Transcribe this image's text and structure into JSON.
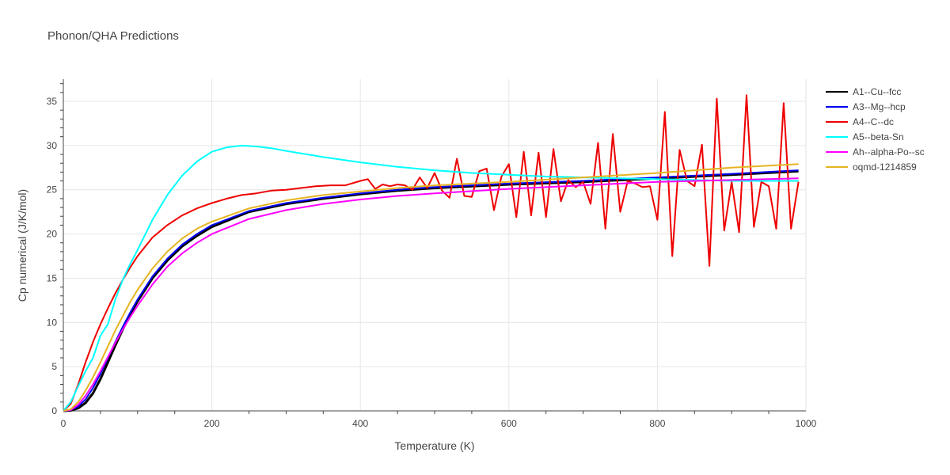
{
  "chart_data": {
    "type": "line",
    "title": "Phonon/QHA Predictions",
    "xlabel": "Temperature (K)",
    "ylabel": "Cp numerical (J/K/mol)",
    "xlim": [
      0,
      1000
    ],
    "ylim": [
      0,
      37.5
    ],
    "xticks": [
      0,
      200,
      400,
      600,
      800,
      1000
    ],
    "xtick_labels": [
      "0",
      "200",
      "400",
      "600",
      "800",
      "1000"
    ],
    "yticks": [
      0,
      5,
      10,
      15,
      20,
      25,
      30,
      35
    ],
    "ytick_labels": [
      "0",
      "5",
      "10",
      "15",
      "20",
      "25",
      "30",
      "35"
    ],
    "grid": true,
    "legend_position": "top-right",
    "series": [
      {
        "name": "A1--Cu--fcc",
        "color": "#000000",
        "width": 3,
        "x": [
          0,
          10,
          20,
          30,
          40,
          50,
          60,
          70,
          80,
          90,
          100,
          120,
          140,
          160,
          180,
          200,
          250,
          300,
          350,
          400,
          450,
          500,
          600,
          700,
          800,
          900,
          990
        ],
        "y": [
          0,
          0.05,
          0.3,
          0.9,
          2.0,
          3.6,
          5.5,
          7.4,
          9.2,
          10.9,
          12.4,
          15.0,
          17.0,
          18.6,
          19.8,
          20.8,
          22.5,
          23.4,
          24.0,
          24.5,
          24.9,
          25.2,
          25.6,
          25.9,
          26.3,
          26.7,
          27.1
        ]
      },
      {
        "name": "A3--Mg--hcp",
        "color": "#0000ee",
        "width": 2,
        "x": [
          0,
          10,
          20,
          30,
          40,
          50,
          60,
          70,
          80,
          90,
          100,
          120,
          140,
          160,
          180,
          200,
          250,
          300,
          350,
          400,
          450,
          500,
          600,
          700,
          800,
          900,
          990
        ],
        "y": [
          0,
          0.1,
          0.5,
          1.3,
          2.6,
          4.2,
          6.0,
          7.8,
          9.5,
          11.1,
          12.6,
          15.2,
          17.2,
          18.8,
          20.0,
          21.0,
          22.6,
          23.5,
          24.1,
          24.6,
          25.0,
          25.3,
          25.7,
          26.0,
          26.4,
          26.8,
          27.2
        ]
      },
      {
        "name": "A4--C--dc",
        "color": "#ee0000",
        "width": 2,
        "x": [
          0,
          10,
          20,
          30,
          40,
          50,
          60,
          70,
          80,
          90,
          100,
          120,
          140,
          160,
          180,
          200,
          220,
          240,
          260,
          280,
          300,
          320,
          340,
          360,
          380,
          400,
          410,
          420,
          430,
          440,
          450,
          460,
          470,
          480,
          490,
          500,
          510,
          520,
          530,
          540,
          550,
          560,
          570,
          580,
          590,
          600,
          610,
          620,
          630,
          640,
          650,
          660,
          670,
          680,
          690,
          700,
          710,
          720,
          730,
          740,
          750,
          760,
          770,
          780,
          790,
          800,
          810,
          820,
          830,
          840,
          850,
          860,
          870,
          880,
          890,
          900,
          910,
          920,
          930,
          940,
          950,
          960,
          970,
          980,
          990
        ],
        "y": [
          0,
          0.8,
          3.0,
          5.5,
          7.8,
          9.8,
          11.6,
          13.3,
          14.8,
          16.2,
          17.5,
          19.6,
          21.0,
          22.1,
          22.9,
          23.5,
          24.0,
          24.4,
          24.6,
          24.9,
          25.0,
          25.2,
          25.4,
          25.5,
          25.5,
          26.0,
          26.2,
          25.1,
          25.6,
          25.4,
          25.6,
          25.5,
          25.0,
          26.4,
          25.2,
          26.9,
          24.9,
          24.1,
          28.5,
          24.3,
          24.2,
          27.1,
          27.4,
          22.7,
          26.5,
          27.9,
          21.9,
          29.3,
          22.1,
          29.2,
          21.9,
          29.6,
          23.7,
          26.1,
          25.3,
          25.9,
          23.4,
          30.3,
          20.6,
          31.3,
          22.5,
          26.0,
          25.7,
          25.3,
          25.4,
          21.6,
          33.8,
          17.5,
          29.5,
          26.0,
          25.4,
          30.1,
          16.4,
          35.3,
          20.4,
          25.9,
          20.2,
          35.7,
          20.8,
          25.9,
          25.4,
          20.6,
          34.8,
          20.6,
          25.9
        ]
      },
      {
        "name": "A5--beta-Sn",
        "color": "#00ffff",
        "width": 2,
        "x": [
          0,
          10,
          20,
          30,
          40,
          50,
          60,
          70,
          80,
          90,
          100,
          120,
          140,
          160,
          180,
          200,
          220,
          240,
          260,
          280,
          300,
          350,
          400,
          450,
          500,
          550,
          600,
          650,
          700,
          750,
          800,
          850,
          900,
          950,
          990
        ],
        "y": [
          0,
          1.0,
          2.8,
          4.5,
          6.0,
          8.5,
          9.8,
          12.6,
          14.8,
          16.6,
          18.2,
          21.6,
          24.4,
          26.6,
          28.2,
          29.3,
          29.8,
          30.0,
          29.9,
          29.7,
          29.4,
          28.7,
          28.1,
          27.6,
          27.2,
          26.9,
          26.7,
          26.5,
          26.4,
          26.3,
          26.2,
          26.1,
          26.0,
          26.0,
          26.0
        ]
      },
      {
        "name": "Ah--alpha-Po--sc",
        "color": "#ff00ff",
        "width": 2,
        "x": [
          0,
          10,
          20,
          30,
          40,
          50,
          60,
          70,
          80,
          90,
          100,
          120,
          140,
          160,
          180,
          200,
          250,
          300,
          350,
          400,
          450,
          500,
          600,
          700,
          800,
          900,
          990
        ],
        "y": [
          0,
          0.1,
          0.7,
          1.7,
          3.0,
          4.5,
          6.1,
          7.7,
          9.2,
          10.6,
          11.9,
          14.3,
          16.3,
          17.8,
          19.0,
          20.0,
          21.7,
          22.7,
          23.4,
          23.9,
          24.3,
          24.6,
          25.1,
          25.5,
          25.9,
          26.1,
          26.3
        ]
      },
      {
        "name": "oqmd-1214859",
        "color": "#e6b422",
        "width": 2,
        "x": [
          0,
          10,
          20,
          30,
          40,
          50,
          60,
          70,
          80,
          90,
          100,
          120,
          140,
          160,
          180,
          200,
          250,
          300,
          350,
          400,
          450,
          500,
          600,
          700,
          800,
          900,
          990
        ],
        "y": [
          0,
          0.2,
          1.0,
          2.3,
          3.8,
          5.5,
          7.3,
          9.1,
          10.7,
          12.3,
          13.7,
          16.1,
          18.0,
          19.5,
          20.6,
          21.4,
          22.9,
          23.8,
          24.4,
          24.8,
          25.2,
          25.5,
          25.9,
          26.4,
          26.9,
          27.5,
          27.9
        ]
      }
    ]
  }
}
